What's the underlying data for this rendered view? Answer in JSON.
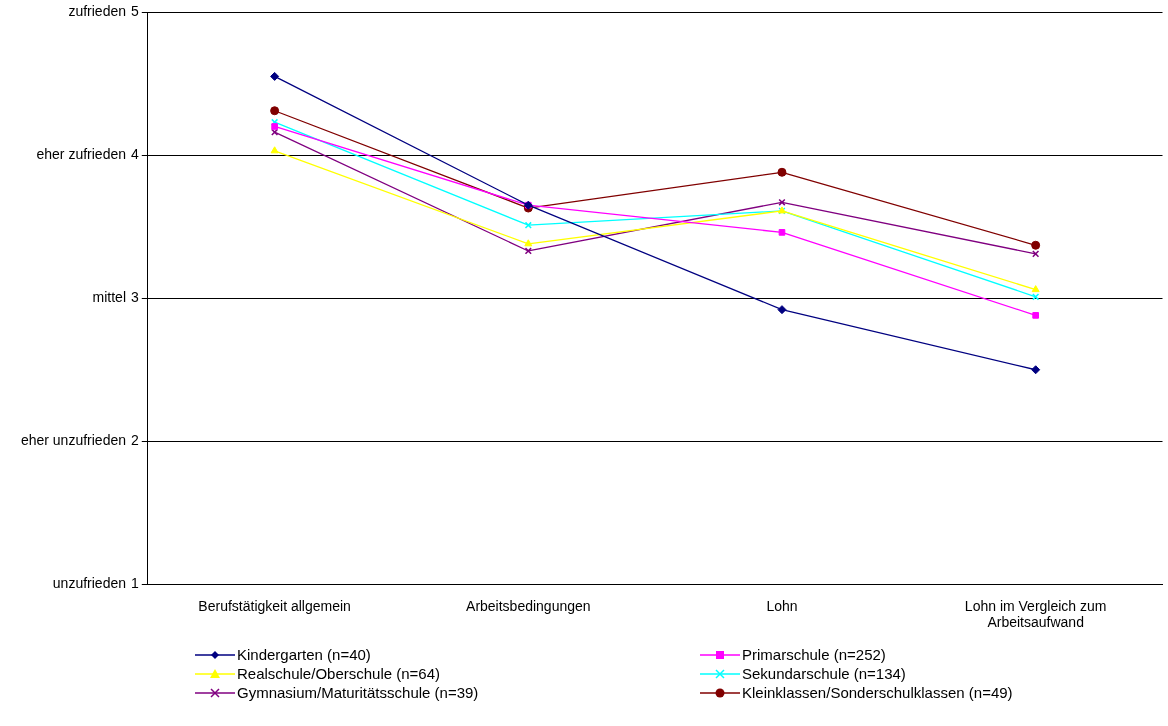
{
  "chart_data": {
    "type": "line",
    "categories": [
      "Berufstätigkeit allgemein",
      "Arbeitsbedingungen",
      "Lohn",
      "Lohn im Vergleich zum Arbeitsaufwand"
    ],
    "ylim": [
      1,
      5
    ],
    "yticks": [
      1,
      2,
      3,
      4,
      5
    ],
    "annotations": [
      "unzufrieden",
      "eher unzufrieden",
      "mittel",
      "eher zufrieden",
      "zufrieden"
    ],
    "grid": "y",
    "legend": "bottom",
    "series": [
      {
        "name": "Kindergarten (n=40)",
        "color": "#000080",
        "marker": "diamond",
        "values": [
          4.55,
          3.65,
          2.92,
          2.5
        ]
      },
      {
        "name": "Primarschule (n=252)",
        "color": "#ff00ff",
        "marker": "square",
        "values": [
          4.2,
          3.65,
          3.46,
          2.88
        ]
      },
      {
        "name": "Realschule/Oberschule (n=64)",
        "color": "#ffff00",
        "marker": "triangle",
        "values": [
          4.03,
          3.38,
          3.61,
          3.06
        ]
      },
      {
        "name": "Sekundarschule (n=134)",
        "color": "#00ffff",
        "marker": "cross",
        "values": [
          4.23,
          3.51,
          3.61,
          3.01
        ]
      },
      {
        "name": "Gymnasium/Maturitätsschule (n=39)",
        "color": "#800080",
        "marker": "cross",
        "values": [
          4.16,
          3.33,
          3.67,
          3.31
        ]
      },
      {
        "name": "Kleinklassen/Sonderschulklassen (n=49)",
        "color": "#800000",
        "marker": "circle",
        "values": [
          4.31,
          3.63,
          3.88,
          3.37
        ]
      }
    ]
  }
}
